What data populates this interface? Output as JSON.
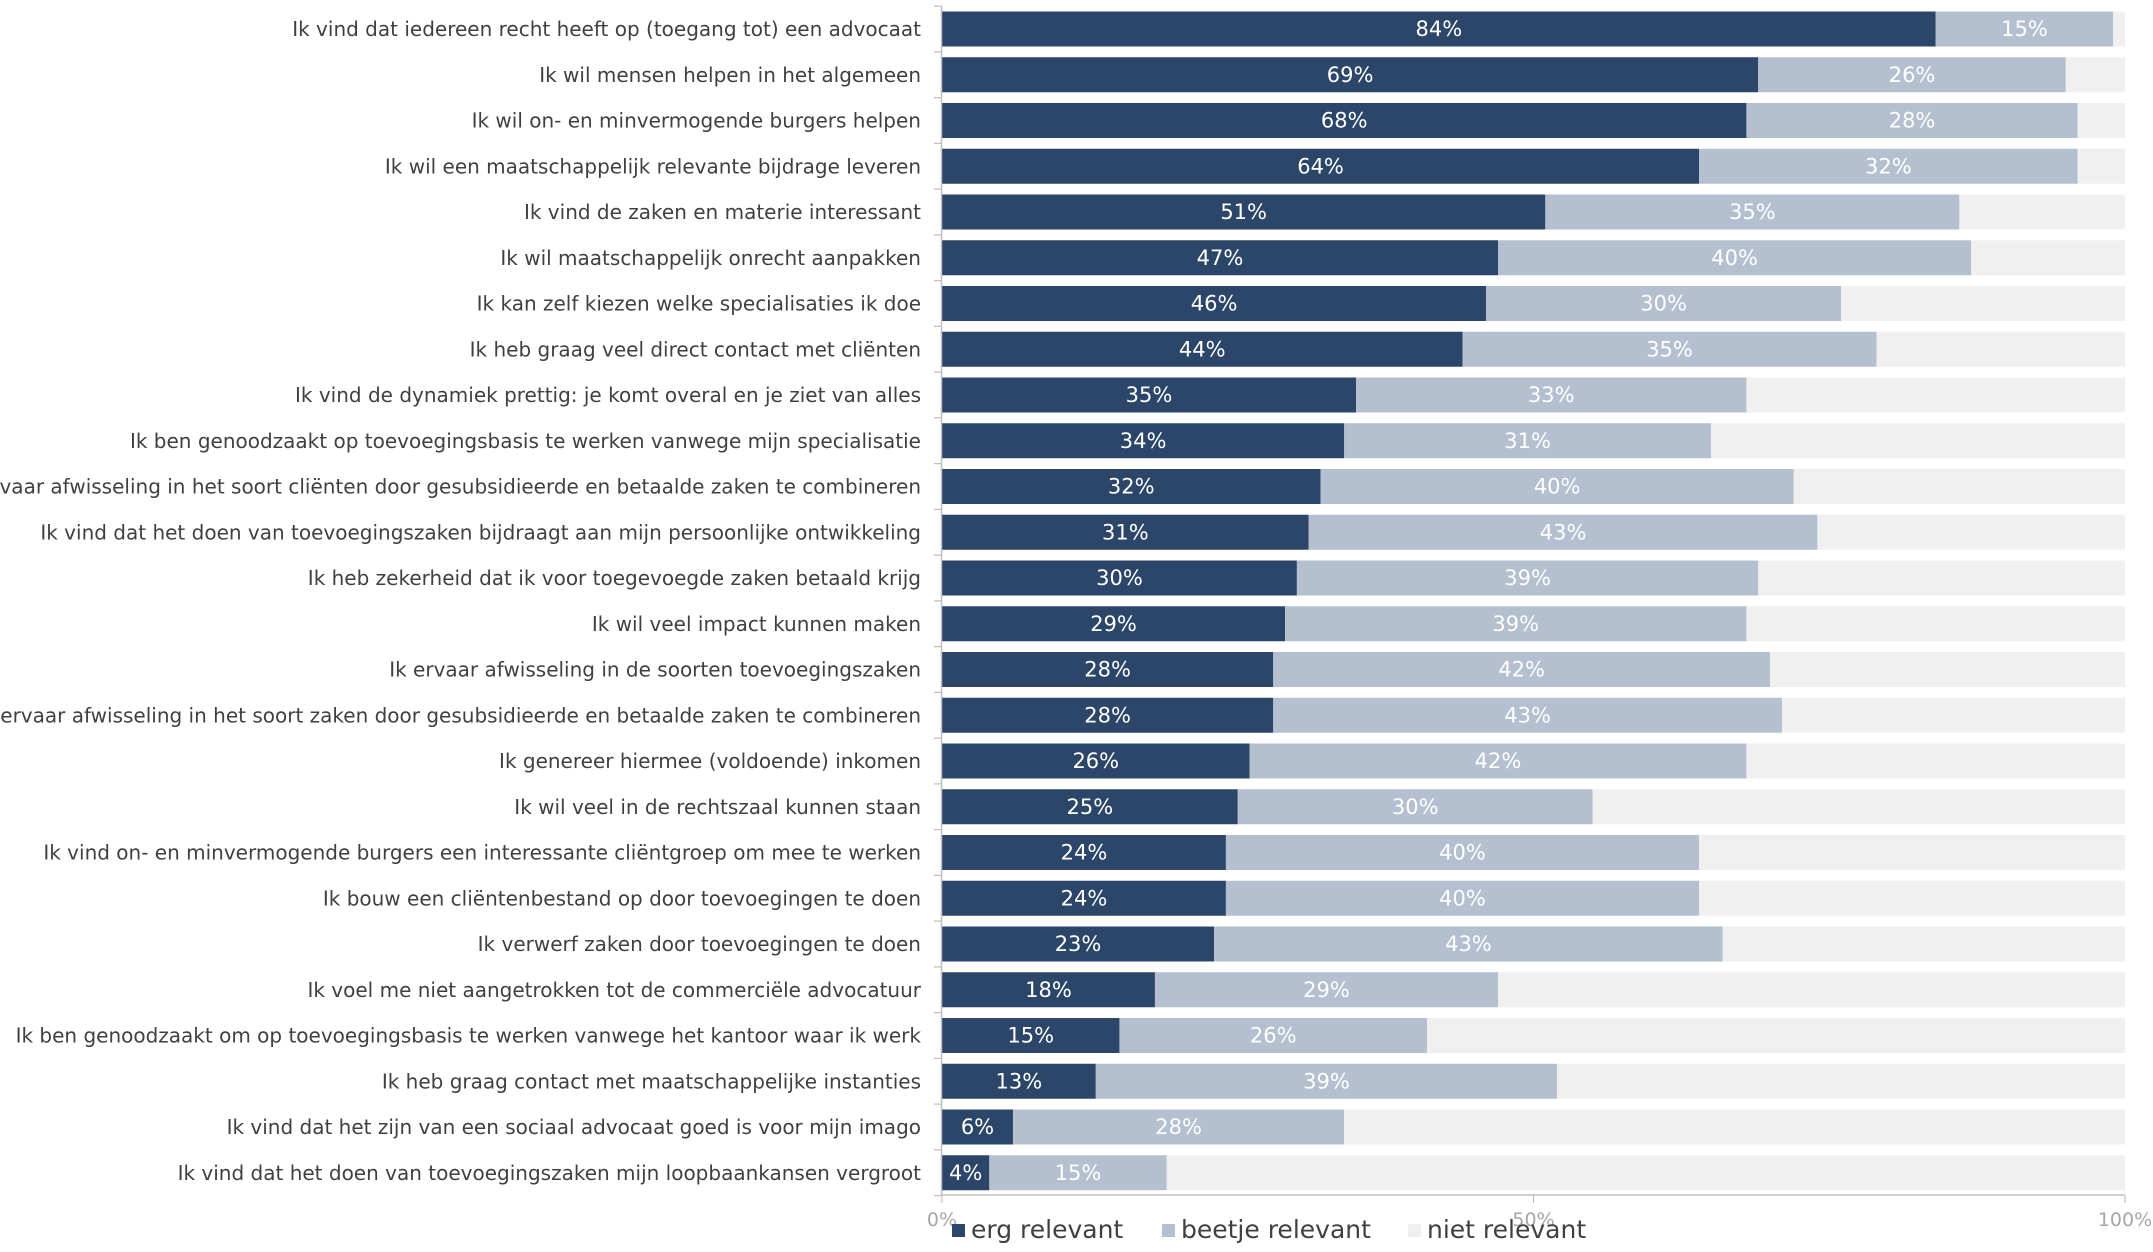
{
  "chart_data": {
    "type": "bar",
    "orientation": "horizontal",
    "stacked": true,
    "normalized_percent": true,
    "categories": [
      "Ik vind dat iedereen recht heeft op (toegang tot) een advocaat",
      "Ik wil mensen helpen in het algemeen",
      "Ik wil on- en minvermogende burgers helpen",
      "Ik wil een maatschappelijk relevante bijdrage leveren",
      "Ik vind de zaken en materie interessant",
      "Ik wil maatschappelijk onrecht aanpakken",
      "Ik kan zelf kiezen welke specialisaties ik doe",
      "Ik heb graag veel direct contact met cliënten",
      "Ik vind de dynamiek prettig: je komt overal en je ziet van alles",
      "Ik ben genoodzaakt op toevoegingsbasis te werken vanwege mijn specialisatie",
      "Ik ervaar afwisseling in het soort cliënten door gesubsidieerde en betaalde zaken te combineren",
      "Ik vind dat het doen van toevoegingszaken bijdraagt aan mijn persoonlijke ontwikkeling",
      "Ik heb zekerheid dat ik voor toegevoegde zaken betaald krijg",
      "Ik wil veel impact kunnen maken",
      "Ik ervaar afwisseling in de soorten toevoegingszaken",
      "Ik ervaar afwisseling in het soort zaken door gesubsidieerde en betaalde zaken te combineren",
      "Ik genereer hiermee (voldoende) inkomen",
      "Ik wil veel in de rechtszaal kunnen staan",
      "Ik vind on- en minvermogende burgers een interessante cliëntgroep om mee te werken",
      "Ik bouw een cliëntenbestand op door toevoegingen te doen",
      "Ik verwerf zaken door toevoegingen te doen",
      "Ik voel me niet aangetrokken tot de commerciële advocatuur",
      "Ik ben genoodzaakt om op toevoegingsbasis te werken vanwege het kantoor waar ik werk",
      "Ik heb graag contact met maatschappelijke instanties",
      "Ik vind dat het zijn van een sociaal advocaat goed is voor mijn imago",
      "Ik vind dat het doen van toevoegingszaken mijn loopbaankansen vergroot"
    ],
    "series": [
      {
        "name": "erg relevant",
        "color": "#2b4669",
        "values": [
          84,
          69,
          68,
          64,
          51,
          47,
          46,
          44,
          35,
          34,
          32,
          31,
          30,
          29,
          28,
          28,
          26,
          25,
          24,
          24,
          23,
          18,
          15,
          13,
          6,
          4
        ],
        "labels": [
          "84%",
          "69%",
          "68%",
          "64%",
          "51%",
          "47%",
          "46%",
          "44%",
          "35%",
          "34%",
          "32%",
          "31%",
          "30%",
          "29%",
          "28%",
          "28%",
          "26%",
          "25%",
          "24%",
          "24%",
          "23%",
          "18%",
          "15%",
          "13%",
          "6%",
          "4%"
        ]
      },
      {
        "name": "beetje relevant",
        "color": "#b4c0d0",
        "values": [
          15,
          26,
          28,
          32,
          35,
          40,
          30,
          35,
          33,
          31,
          40,
          43,
          39,
          39,
          42,
          43,
          42,
          30,
          40,
          40,
          43,
          29,
          26,
          39,
          28,
          15
        ],
        "labels": [
          "15%",
          "26%",
          "28%",
          "32%",
          "35%",
          "40%",
          "30%",
          "35%",
          "33%",
          "31%",
          "40%",
          "43%",
          "39%",
          "39%",
          "42%",
          "43%",
          "42%",
          "30%",
          "40%",
          "40%",
          "43%",
          "29%",
          "26%",
          "39%",
          "28%",
          "15%"
        ]
      },
      {
        "name": "niet relevant",
        "color": "#f0f0f0",
        "values": [
          1,
          5,
          4,
          4,
          14,
          13,
          24,
          21,
          32,
          35,
          28,
          26,
          31,
          32,
          30,
          29,
          32,
          45,
          36,
          36,
          34,
          53,
          59,
          48,
          66,
          81
        ]
      }
    ],
    "xlim": [
      0,
      100
    ],
    "x_ticks": [
      0,
      50,
      100
    ],
    "x_tick_labels": [
      "0%",
      "50%",
      "100%"
    ],
    "grid": false,
    "legend_position": "bottom-left",
    "title": "",
    "xlabel": "",
    "ylabel": ""
  },
  "colors": {
    "bar_label_text": "#ffffff",
    "category_text": "#404040",
    "tick_text": "#a6a6a6",
    "axis_line": "#bfbfbf",
    "legend_text": "#404040"
  }
}
